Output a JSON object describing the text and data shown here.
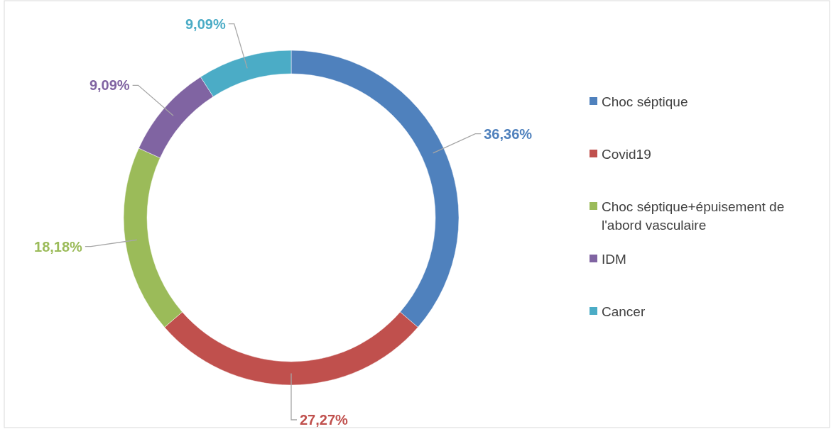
{
  "chart_data": {
    "type": "donut",
    "categories": [
      "Choc séptique",
      "Covid19",
      "Choc séptique+épuisement de l'abord vasculaire",
      "IDM",
      "Cancer"
    ],
    "values": [
      36.36,
      27.27,
      18.18,
      9.09,
      9.09
    ],
    "colors": [
      "#4f81bd",
      "#c0504d",
      "#9bbb59",
      "#8064a2",
      "#4bacc6"
    ],
    "value_labels": [
      "36,36%",
      "27,27%",
      "18,18%",
      "9,09%",
      "9,09%"
    ],
    "legend": "right"
  }
}
